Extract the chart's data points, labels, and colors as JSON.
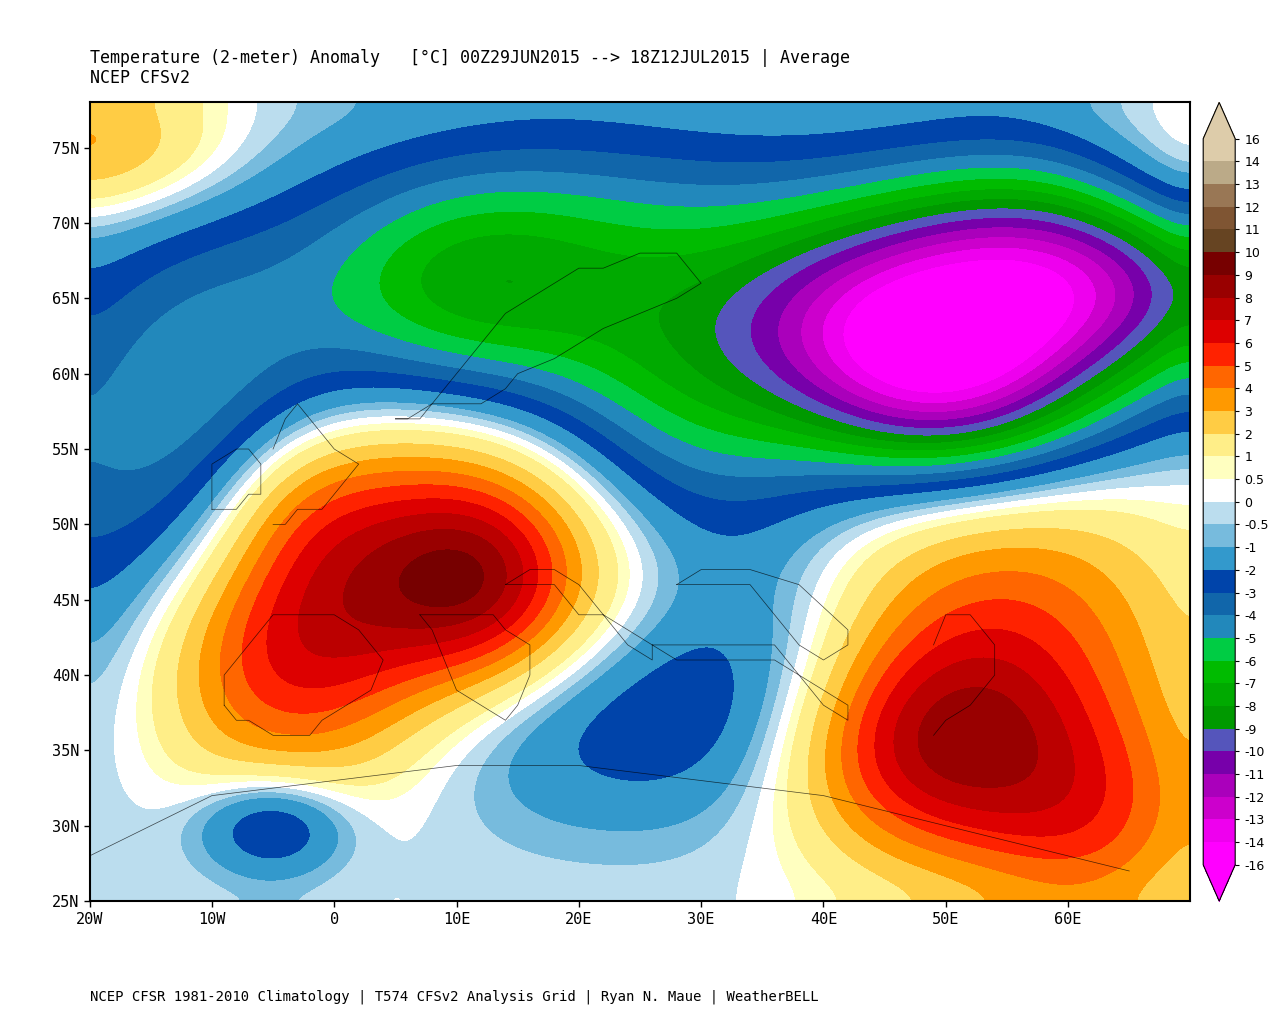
{
  "title_line1": "Temperature (2-meter) Anomaly   [°C] 00Z29JUN2015 --> 18Z12JUL2015 | Average",
  "title_line2": "NCEP CFSv2",
  "footer": "NCEP CFSR 1981-2010 Climatology | T574 CFSv2 Analysis Grid | Ryan N. Maue | WeatherBELL",
  "lon_min": -20,
  "lon_max": 70,
  "lat_min": 25,
  "lat_max": 78,
  "xticks": [
    -20,
    -10,
    0,
    10,
    20,
    30,
    40,
    50,
    60
  ],
  "xtick_labels": [
    "20W",
    "10W",
    "0",
    "10E",
    "20E",
    "30E",
    "40E",
    "50E",
    "60E"
  ],
  "yticks": [
    25,
    30,
    35,
    40,
    45,
    50,
    55,
    60,
    65,
    70,
    75
  ],
  "ytick_labels": [
    "25N",
    "30N",
    "35N",
    "40N",
    "45N",
    "50N",
    "55N",
    "60N",
    "65N",
    "70N",
    "75N"
  ],
  "colorbar_levels": [
    16,
    14,
    13,
    12,
    11,
    10,
    9,
    8,
    7,
    6,
    5,
    4,
    3,
    2,
    1,
    0.5,
    0,
    -0.5,
    -1,
    -2,
    -3,
    -4,
    -5,
    -6,
    -7,
    -8,
    -9,
    -10,
    -11,
    -12,
    -13,
    -14,
    -16
  ],
  "colorbar_colors": [
    "#7f0000",
    "#a00000",
    "#be1414",
    "#cc2020",
    "#d93030",
    "#e04040",
    "#cc5500",
    "#d96600",
    "#e87700",
    "#f08820",
    "#f09940",
    "#f0aa60",
    "#f0cc80",
    "#f5e8b0",
    "#fffff0",
    "#e8ffe8",
    "#ffffff",
    "#d0f0ff",
    "#a0d8f0",
    "#70bfe0",
    "#40a0d0",
    "#1080c0",
    "#0060a0",
    "#004080",
    "#003060",
    "#306090",
    "#5080a0",
    "#008000",
    "#00a000",
    "#00c000",
    "#ff00ff",
    "#dd00dd",
    "#bb00bb"
  ],
  "background_color": "#ffffff",
  "map_bg": "#d0e8f8"
}
